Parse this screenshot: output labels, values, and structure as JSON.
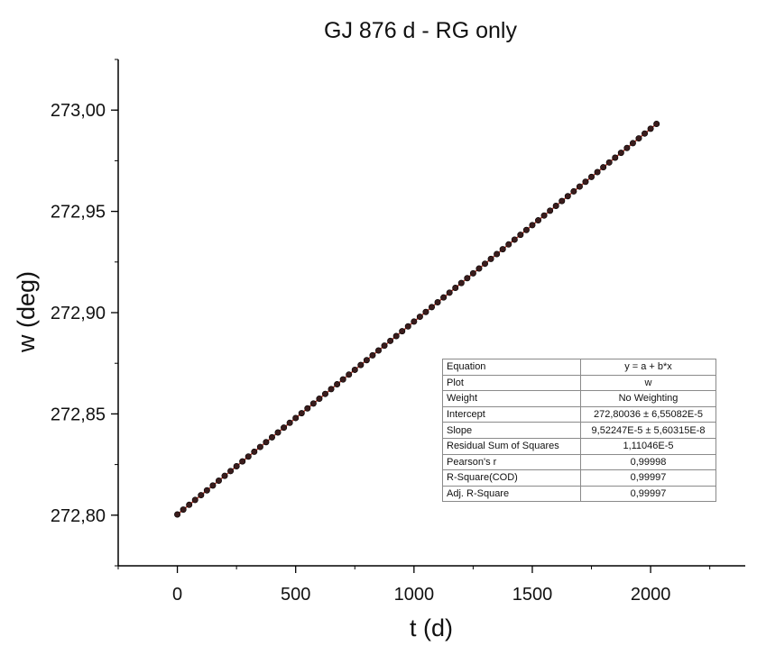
{
  "chart_data": {
    "type": "scatter",
    "title": "GJ 876 d - RG only",
    "xlabel": "t (d)",
    "ylabel": "w (deg)",
    "xlim": [
      -250,
      2400
    ],
    "ylim": [
      272.775,
      273.025
    ],
    "x_ticks": [
      0,
      500,
      1000,
      1500,
      2000
    ],
    "x_tick_labels": [
      "0",
      "500",
      "1000",
      "1500",
      "2000"
    ],
    "y_ticks": [
      272.8,
      272.85,
      272.9,
      272.95,
      273.0
    ],
    "y_tick_labels": [
      "272,80",
      "272,85",
      "272,90",
      "272,95",
      "273,00"
    ],
    "grid": false,
    "series": [
      {
        "fit": "linear",
        "intercept": 272.80036,
        "slope": 9.52247e-05,
        "x_start": 0,
        "x_end": 2025,
        "x_step": 25,
        "marker_color": "#3a1c1c",
        "line_color": "#c0392b"
      }
    ],
    "fit_table": [
      {
        "key": "Equation",
        "value": "y = a + b*x"
      },
      {
        "key": "Plot",
        "value": "w"
      },
      {
        "key": "Weight",
        "value": "No Weighting"
      },
      {
        "key": "Intercept",
        "value": "272,80036 ± 6,55082E-5"
      },
      {
        "key": "Slope",
        "value": "9,52247E-5 ± 5,60315E-8"
      },
      {
        "key": "Residual Sum of Squares",
        "value": "1,11046E-5"
      },
      {
        "key": "Pearson's r",
        "value": "0,99998"
      },
      {
        "key": "R-Square(COD)",
        "value": "0,99997"
      },
      {
        "key": "Adj. R-Square",
        "value": "0,99997"
      }
    ]
  }
}
